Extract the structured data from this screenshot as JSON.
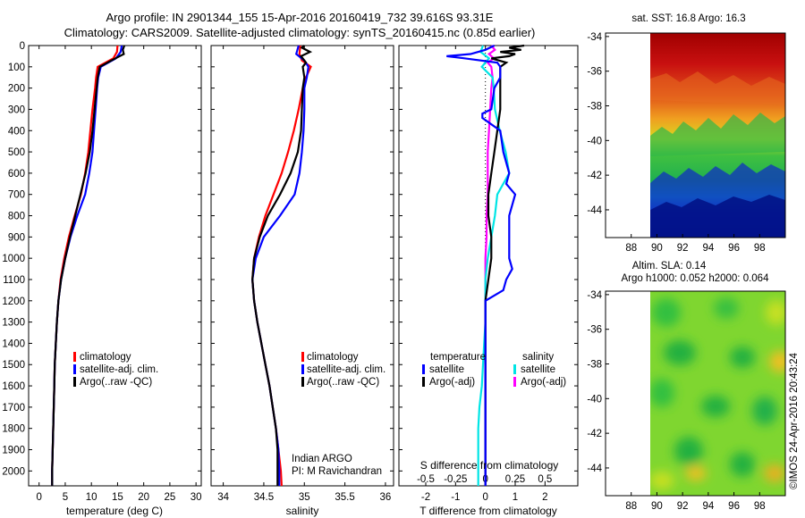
{
  "title_line1": "Argo profile: IN 2901344_155 15-Apr-2016 20160419_732 39.616S 93.31E",
  "title_line2": "Climatology: CARS2009. Satellite-adjusted climatology: synTS_20160415.nc (0.85d earlier)",
  "colors": {
    "clim": "#ff0000",
    "sat": "#0000ff",
    "argo": "#000000",
    "sal_sat": "#00e5e5",
    "sal_argo": "#ff00ff"
  },
  "depth_ticks": [
    "0",
    "100",
    "200",
    "300",
    "400",
    "500",
    "600",
    "700",
    "800",
    "900",
    "1000",
    "1100",
    "1200",
    "1300",
    "1400",
    "1500",
    "1600",
    "1700",
    "1800",
    "1900",
    "2000"
  ],
  "info_text": [
    "Indian ARGO",
    "PI: M Ravichandran"
  ],
  "timestamp": "©IMOS 24-Apr-2016 20:43:24",
  "chart_data": [
    {
      "type": "line",
      "xlabel": "temperature (deg C)",
      "xlim": [
        -2,
        31
      ],
      "ylim": [
        2070,
        0
      ],
      "xticks": [
        "0",
        "5",
        "10",
        "15",
        "20",
        "25",
        "30"
      ],
      "legend": [
        "climatology",
        "satellite-adj. clim.",
        "Argo(..raw -QC)"
      ],
      "series": [
        {
          "name": "climatology",
          "depth": [
            0,
            30,
            60,
            100,
            150,
            200,
            300,
            400,
            500,
            600,
            700,
            800,
            900,
            1000,
            1100,
            1200,
            1300,
            1400,
            1500,
            1600,
            1700,
            1800,
            1900,
            2000,
            2070
          ],
          "values": [
            15.0,
            14.9,
            14.2,
            11.2,
            10.9,
            10.7,
            10.2,
            9.8,
            9.4,
            8.8,
            8.0,
            6.8,
            5.7,
            4.8,
            4.1,
            3.7,
            3.4,
            3.2,
            3.0,
            2.9,
            2.8,
            2.7,
            2.6,
            2.5,
            2.5
          ]
        },
        {
          "name": "satellite-adj. clim.",
          "depth": [
            0,
            30,
            60,
            100,
            150,
            200,
            300,
            400,
            500,
            600,
            700,
            800,
            900,
            1000,
            1100,
            1200,
            1300,
            1400,
            1500,
            1600,
            1700,
            1800,
            1900,
            2000,
            2070
          ],
          "values": [
            15.8,
            15.6,
            14.7,
            11.8,
            11.3,
            11.1,
            10.8,
            10.5,
            10.2,
            9.6,
            8.8,
            7.3,
            6.0,
            5.0,
            4.2,
            3.7,
            3.4,
            3.2,
            3.0,
            2.9,
            2.8,
            2.7,
            2.6,
            2.5,
            2.5
          ]
        },
        {
          "name": "Argo(..raw -QC)",
          "depth": [
            0,
            20,
            40,
            60,
            100,
            150,
            200,
            300,
            400,
            500,
            600,
            700,
            800,
            900,
            1000,
            1100,
            1200,
            1300,
            1400,
            1500,
            1600,
            1700,
            1800,
            1900,
            2000,
            2070
          ],
          "values": [
            16.3,
            16.0,
            16.2,
            14.6,
            11.6,
            11.2,
            11.0,
            10.6,
            10.2,
            9.7,
            8.9,
            7.9,
            6.9,
            5.9,
            5.0,
            4.2,
            3.7,
            3.4,
            3.2,
            3.0,
            2.9,
            2.8,
            2.7,
            2.6,
            2.5,
            2.5
          ]
        }
      ]
    },
    {
      "type": "line",
      "xlabel": "salinity",
      "xlim": [
        33.85,
        36.1
      ],
      "ylim": [
        2070,
        0
      ],
      "xticks": [
        "34",
        "34.5",
        "35",
        "35.5",
        "36"
      ],
      "legend": [
        "climatology",
        "satellite-adj. clim.",
        "Argo(..raw -QC)"
      ],
      "series": [
        {
          "name": "climatology",
          "depth": [
            0,
            40,
            70,
            100,
            150,
            200,
            300,
            400,
            500,
            600,
            700,
            800,
            900,
            1000,
            1100,
            1200,
            1300,
            1400,
            1500,
            1600,
            1700,
            1800,
            1900,
            2000,
            2070
          ],
          "values": [
            34.95,
            34.94,
            34.97,
            35.08,
            35.02,
            34.98,
            34.93,
            34.87,
            34.8,
            34.72,
            34.62,
            34.52,
            34.44,
            34.38,
            34.36,
            34.38,
            34.42,
            34.47,
            34.52,
            34.57,
            34.61,
            34.65,
            34.68,
            34.71,
            34.72
          ]
        },
        {
          "name": "satellite-adj. clim.",
          "depth": [
            0,
            40,
            70,
            100,
            150,
            200,
            300,
            400,
            500,
            600,
            700,
            800,
            900,
            1000,
            1100,
            1200,
            1300,
            1400,
            1500,
            1600,
            1700,
            1800,
            1900,
            2000,
            2070
          ],
          "values": [
            34.93,
            34.9,
            35.0,
            35.05,
            35.03,
            35.0,
            35.0,
            34.99,
            34.97,
            34.94,
            34.88,
            34.7,
            34.5,
            34.4,
            34.36,
            34.38,
            34.42,
            34.47,
            34.52,
            34.57,
            34.61,
            34.65,
            34.68,
            34.69,
            34.69
          ]
        },
        {
          "name": "Argo(..raw -QC)",
          "depth": [
            0,
            10,
            30,
            50,
            80,
            100,
            150,
            200,
            300,
            400,
            500,
            600,
            700,
            800,
            900,
            1000,
            1100,
            1200,
            1300,
            1400,
            1500,
            1600,
            1700,
            1800,
            1900,
            2000,
            2070
          ],
          "values": [
            35.0,
            34.97,
            35.07,
            34.96,
            35.02,
            34.98,
            35.0,
            34.98,
            34.97,
            34.96,
            34.92,
            34.83,
            34.7,
            34.55,
            34.45,
            34.38,
            34.36,
            34.38,
            34.42,
            34.47,
            34.52,
            34.57,
            34.61,
            34.65,
            34.67,
            34.67,
            34.67
          ]
        }
      ]
    },
    {
      "type": "line",
      "xlabel": "T difference from climatology",
      "xlabel_top": "S difference from climatology",
      "xlim": [
        -2.9,
        3.1
      ],
      "ylim": [
        2070,
        0
      ],
      "xticks": [
        "-2",
        "-1",
        "0",
        "1",
        "2"
      ],
      "sticks": [
        "-0.5",
        "-0.25",
        "0",
        "0.25",
        "0.5"
      ],
      "legend_headers": [
        "temperature",
        "salinity"
      ],
      "legend_t": [
        "satellite",
        "Argo(-adj)"
      ],
      "legend_s": [
        "satellite",
        "Argo(-adj)"
      ],
      "series": [
        {
          "name": "satellite",
          "group": "temperature",
          "depth": [
            0,
            20,
            40,
            50,
            60,
            80,
            100,
            150,
            200,
            300,
            320,
            340,
            400,
            500,
            600,
            650,
            700,
            800,
            900,
            1000,
            1050,
            1100,
            1150,
            1200,
            1300,
            1400,
            1500,
            1600,
            1700,
            1800,
            1900,
            2000,
            2070
          ],
          "values": [
            0.3,
            0.0,
            -0.5,
            -1.3,
            -0.7,
            0.4,
            0.5,
            0.5,
            0.3,
            0.2,
            -0.1,
            -0.1,
            0.5,
            0.6,
            0.8,
            0.7,
            1.0,
            0.8,
            0.8,
            0.8,
            0.9,
            0.7,
            0.6,
            0.0,
            0.0,
            0.0,
            0.0,
            0.0,
            0.0,
            0.0,
            0.0,
            0.0,
            0.0
          ]
        },
        {
          "name": "Argo(-adj)",
          "group": "temperature",
          "depth": [
            0,
            10,
            20,
            30,
            40,
            50,
            60,
            80,
            100,
            150,
            200,
            300,
            400,
            500,
            600,
            700,
            800,
            900,
            1000,
            1100,
            1200,
            1300,
            1400,
            1500,
            1600,
            1700,
            1800,
            1900,
            2000,
            2070
          ],
          "values": [
            1.3,
            0.8,
            1.2,
            0.5,
            1.0,
            0.8,
            0.2,
            0.7,
            0.5,
            0.5,
            0.5,
            0.5,
            0.4,
            0.3,
            0.2,
            0.1,
            0.1,
            0.2,
            0.2,
            0.1,
            0.0,
            0.0,
            0.0,
            0.0,
            0.0,
            0.0,
            0.0,
            0.0,
            0.0,
            0.0
          ]
        },
        {
          "name": "satellite",
          "group": "salinity",
          "depth": [
            0,
            30,
            60,
            100,
            150,
            200,
            300,
            400,
            500,
            600,
            700,
            800,
            900,
            1000,
            1100,
            1200,
            1300,
            1400,
            1500,
            1600,
            1700,
            1800,
            1900,
            2000,
            2070
          ],
          "values": [
            -0.02,
            -0.04,
            0.03,
            -0.03,
            0.06,
            0.07,
            0.08,
            0.12,
            0.17,
            0.2,
            0.1,
            0.08,
            0.05,
            0.02,
            0.0,
            0.0,
            0.0,
            -0.01,
            -0.02,
            -0.03,
            -0.05,
            -0.06,
            -0.06,
            -0.06,
            -0.06
          ]
        },
        {
          "name": "Argo(-adj)",
          "group": "salinity",
          "depth": [
            0,
            20,
            40,
            60,
            80,
            100,
            150,
            200,
            300,
            400,
            500,
            600,
            700,
            800,
            900,
            1000,
            1100,
            1200,
            1300,
            1400,
            1500,
            1600,
            1700,
            1800,
            1900,
            2000,
            2070
          ],
          "values": [
            0.05,
            0.08,
            0.03,
            0.07,
            0.02,
            0.05,
            0.06,
            0.05,
            0.04,
            0.03,
            0.02,
            0.02,
            0.02,
            0.01,
            0.01,
            0.0,
            0.0,
            0.0,
            0.0,
            0.0,
            0.0,
            0.0,
            0.0,
            0.0,
            0.0,
            0.0,
            0.0
          ]
        }
      ]
    },
    {
      "type": "heatmap",
      "title": "sat. SST: 16.8 Argo: 16.3",
      "yticks": [
        "-34",
        "-36",
        "-38",
        "-40",
        "-42",
        "-44"
      ],
      "xticks": [
        "88",
        "90",
        "92",
        "94",
        "96",
        "98"
      ],
      "xlim": [
        86,
        100
      ],
      "ylim": [
        -45.6,
        -33.8
      ],
      "data_xlim": [
        90,
        100
      ],
      "bands": [
        "dark red",
        "red",
        "orange",
        "yellow",
        "green",
        "cyan",
        "blue",
        "dark blue"
      ]
    },
    {
      "type": "heatmap",
      "title": "Altim. SLA: 0.14",
      "subtitle": "Argo h1000: 0.052 h2000: 0.064",
      "yticks": [
        "-34",
        "-36",
        "-38",
        "-40",
        "-42",
        "-44"
      ],
      "xticks": [
        "88",
        "90",
        "92",
        "94",
        "96",
        "98"
      ],
      "xlim": [
        86,
        100
      ],
      "ylim": [
        -45.6,
        -33.8
      ],
      "data_xlim": [
        90,
        100
      ]
    }
  ]
}
